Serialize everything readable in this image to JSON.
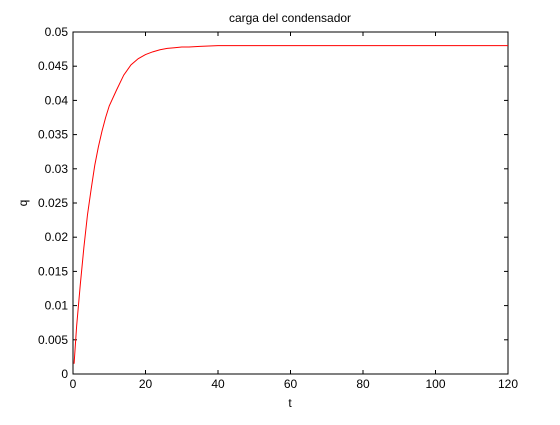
{
  "chart_data": {
    "type": "line",
    "title": "carga del condensador",
    "xlabel": "t",
    "ylabel": "q",
    "xlim": [
      0,
      120
    ],
    "ylim": [
      0,
      0.05
    ],
    "x_ticks": [
      0,
      20,
      40,
      60,
      80,
      100,
      120
    ],
    "y_ticks": [
      0,
      0.005,
      0.01,
      0.015,
      0.02,
      0.025,
      0.03,
      0.035,
      0.04,
      0.045,
      0.05
    ],
    "x_tick_labels": [
      "0",
      "20",
      "40",
      "60",
      "80",
      "100",
      "120"
    ],
    "y_tick_labels": [
      "0",
      "0.005",
      "0.01",
      "0.015",
      "0.02",
      "0.025",
      "0.03",
      "0.035",
      "0.04",
      "0.045",
      "0.05"
    ],
    "grid": false,
    "legend": "none",
    "series": [
      {
        "color": "#ff0000",
        "x": [
          0.3,
          1,
          2,
          3,
          4,
          5,
          6,
          7,
          8,
          9,
          10,
          12,
          14,
          16,
          18,
          20,
          22,
          24,
          26,
          28,
          30,
          32,
          35,
          40,
          45,
          50,
          60,
          70,
          80,
          90,
          100,
          110,
          120
        ],
        "y": [
          0.0015,
          0.007,
          0.013,
          0.0185,
          0.0233,
          0.027,
          0.0305,
          0.0332,
          0.0355,
          0.0375,
          0.0392,
          0.0415,
          0.0437,
          0.0452,
          0.0461,
          0.0467,
          0.0471,
          0.0474,
          0.0476,
          0.0477,
          0.0478,
          0.0478,
          0.0479,
          0.048,
          0.048,
          0.048,
          0.048,
          0.048,
          0.048,
          0.048,
          0.048,
          0.048,
          0.048
        ]
      }
    ]
  }
}
